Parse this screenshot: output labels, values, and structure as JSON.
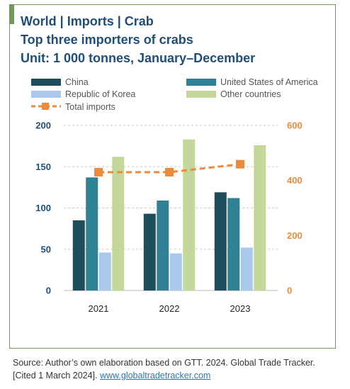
{
  "header": {
    "title_line1": "World | Imports | Crab",
    "title_line2": "Top three  importers of crabs",
    "title_line3": "Unit: 1 000 tonnes, January–December"
  },
  "chart_data": {
    "type": "bar",
    "categories": [
      "2021",
      "2022",
      "2023"
    ],
    "series": [
      {
        "name": "China",
        "values": [
          85,
          93,
          119
        ],
        "color": "#1e4d5b"
      },
      {
        "name": "United States of America",
        "values": [
          137,
          109,
          112
        ],
        "color": "#2f8196"
      },
      {
        "name": "Republic of Korea",
        "values": [
          46,
          45,
          52
        ],
        "color": "#a8c8ec"
      },
      {
        "name": "Other countries",
        "values": [
          162,
          183,
          176
        ],
        "color": "#c3d89a"
      }
    ],
    "line_series": {
      "name": "Total imports",
      "values": [
        430,
        430,
        459
      ],
      "color": "#ed8b3a",
      "style": "dashed",
      "marker": "square",
      "axis": "right"
    },
    "ylim": [
      0,
      200
    ],
    "y2lim": [
      0,
      600
    ],
    "yticks": [
      0,
      50,
      100,
      150,
      200
    ],
    "y2ticks": [
      0,
      200,
      400,
      600
    ],
    "grid": "horizontal dashed",
    "legend_position": "top"
  },
  "footer": {
    "source_text": "Source: Author’s own elaboration based on GTT. 2024. Global Trade Tracker. [Cited 1 March 2024].",
    "source_link": "www.globaltradetracker.com"
  }
}
